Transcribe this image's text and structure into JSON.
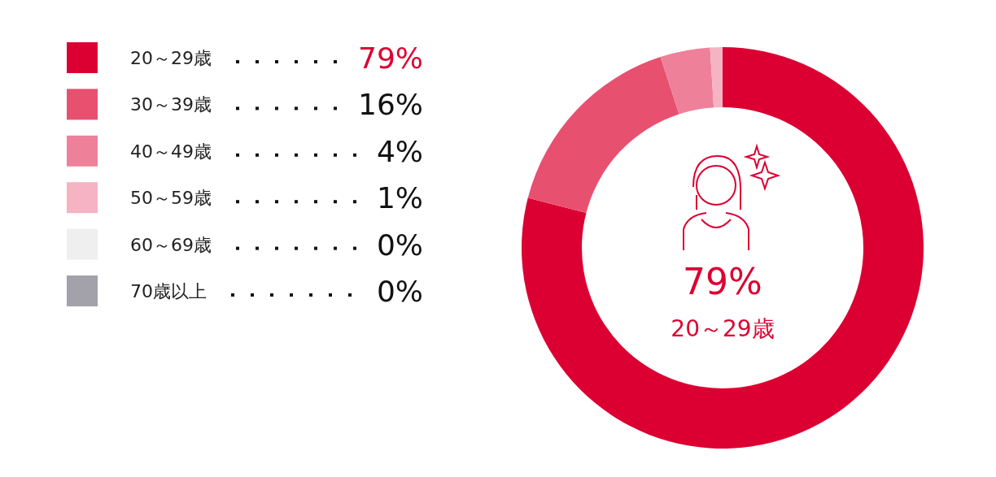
{
  "chart_data": {
    "type": "donut",
    "categories": [
      "20～29歳",
      "30～39歳",
      "40～49歳",
      "50～59歳",
      "60～69歳",
      "70歳以上"
    ],
    "values": [
      79,
      16,
      4,
      1,
      0,
      0
    ],
    "colors": [
      "#dc0032",
      "#e85070",
      "#ef809a",
      "#f5b3c4",
      "#efefef",
      "#a3a2ab"
    ],
    "value_labels": [
      "79%",
      "16%",
      "4%",
      "1%",
      "0%",
      "0%"
    ],
    "legend": "left",
    "annotations": [
      "79%",
      "20～29歳"
    ]
  }
}
